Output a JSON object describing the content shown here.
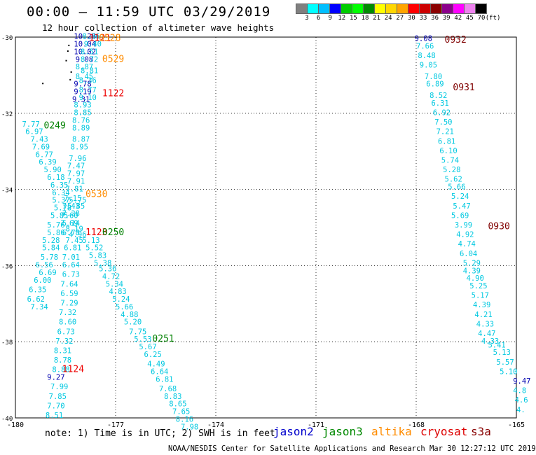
{
  "title": "00:00 – 11:59 UTC 03/29/2019",
  "subtitle": "12 hour collection of altimeter wave heights",
  "color_scale": {
    "labels": [
      "3",
      "6",
      "9",
      "12",
      "15",
      "18",
      "21",
      "24",
      "27",
      "30",
      "33",
      "36",
      "39",
      "42",
      "45",
      "70",
      "(ft)"
    ],
    "colors": [
      "#808080",
      "#00ffff",
      "#00bfff",
      "#0000ff",
      "#00cd00",
      "#00ff00",
      "#008b00",
      "#ffff00",
      "#ffd700",
      "#ffa500",
      "#ff0000",
      "#cd0000",
      "#8b0000",
      "#8b008b",
      "#ff00ff",
      "#ee82ee",
      "#000000"
    ]
  },
  "axes": {
    "x_ticks": [
      "-180",
      "-177",
      "-174",
      "-171",
      "-168",
      "-165"
    ],
    "y_ticks": [
      "-30",
      "-32",
      "-34",
      "-36",
      "-38",
      "-40"
    ]
  },
  "note": "note: 1) Time is in UTC; 2) SWH is in feet",
  "legend": [
    {
      "label": "jason2",
      "color": "#0000cc"
    },
    {
      "label": "jason3",
      "color": "#008800"
    },
    {
      "label": "altika",
      "color": "#ff8c00"
    },
    {
      "label": "cryosat",
      "color": "#dd0000"
    },
    {
      "label": "s3a",
      "color": "#880000"
    }
  ],
  "credit": "NOAA/NESDIS Center for Satellite Applications and Research   Mar 30 12:27:12 UTC 2019",
  "colors": {
    "cyan": "#00c8e0",
    "blue": "#0000b0",
    "green": "#008000",
    "orange": "#ff8c00",
    "red": "#ee0000",
    "maroon": "#800000"
  },
  "chart_data": {
    "type": "scatter",
    "xlim": [
      -180,
      -165
    ],
    "ylim": [
      -40,
      -30
    ],
    "track_labels": [
      {
        "text": "1121",
        "x": -177.8,
        "y": -30.1,
        "color": "red"
      },
      {
        "text": "0528",
        "x": -177.5,
        "y": -30.1,
        "color": "orange"
      },
      {
        "text": "0529",
        "x": -177.4,
        "y": -30.65,
        "color": "orange"
      },
      {
        "text": "1122",
        "x": -177.4,
        "y": -31.55,
        "color": "red"
      },
      {
        "text": "0249",
        "x": -179.15,
        "y": -32.4,
        "color": "green"
      },
      {
        "text": "0530",
        "x": -177.9,
        "y": -34.2,
        "color": "orange"
      },
      {
        "text": "1123",
        "x": -177.9,
        "y": -35.2,
        "color": "red"
      },
      {
        "text": "0250",
        "x": -177.4,
        "y": -35.2,
        "color": "green"
      },
      {
        "text": "0251",
        "x": -175.9,
        "y": -38.0,
        "color": "green"
      },
      {
        "text": "1124",
        "x": -178.6,
        "y": -38.8,
        "color": "red"
      },
      {
        "text": "0932",
        "x": -167.15,
        "y": -30.15,
        "color": "maroon"
      },
      {
        "text": "0931",
        "x": -166.9,
        "y": -31.4,
        "color": "maroon"
      },
      {
        "text": "0930",
        "x": -165.85,
        "y": -35.05,
        "color": "maroon"
      }
    ],
    "tracks": [
      {
        "name": "jason2-a",
        "color": "blue",
        "points": [
          [
            "10.28",
            -178.25,
            -30.05
          ],
          [
            "10.04",
            -178.25,
            -30.25
          ],
          [
            "10.02",
            -178.25,
            -30.45
          ],
          [
            "9.08",
            -178.2,
            -30.65
          ],
          [
            "9.78",
            -178.25,
            -31.3
          ],
          [
            "9.19",
            -178.25,
            -31.5
          ],
          [
            "9.31",
            -178.3,
            -31.7
          ]
        ]
      },
      {
        "name": "jason2-b",
        "color": "blue",
        "points": [
          [
            "9.27",
            -179.05,
            -39.0
          ]
        ]
      },
      {
        "name": "jason2-c",
        "color": "blue",
        "points": [
          [
            "9.08",
            -168.05,
            -30.1
          ],
          [
            "9.47",
            -165.1,
            -39.1
          ]
        ]
      },
      {
        "name": "altika-a",
        "color": "cyan",
        "points": [
          [
            "8.86",
            -178.0,
            -30.05
          ],
          [
            "9.40",
            -177.95,
            -30.25
          ],
          [
            "8.51",
            -178.05,
            -30.45
          ],
          [
            "8.72",
            -178.05,
            -30.65
          ],
          [
            "8.87",
            -178.2,
            -30.85
          ],
          [
            "8.81",
            -178.05,
            -30.95
          ],
          [
            "8.45",
            -178.2,
            -31.1
          ],
          [
            "8.36",
            -178.1,
            -31.2
          ],
          [
            "8.77",
            -178.1,
            -31.45
          ],
          [
            "9.10",
            -178.1,
            -31.65
          ],
          [
            "8.93",
            -178.25,
            -31.85
          ],
          [
            "8.85",
            -178.25,
            -32.05
          ],
          [
            "8.76",
            -178.3,
            -32.25
          ],
          [
            "8.89",
            -178.3,
            -32.45
          ],
          [
            "8.87",
            -178.3,
            -32.75
          ],
          [
            "8.95",
            -178.35,
            -32.95
          ],
          [
            "7.96",
            -178.4,
            -33.25
          ],
          [
            "7.47",
            -178.45,
            -33.45
          ],
          [
            "7.97",
            -178.45,
            -33.65
          ],
          [
            "7.91",
            -178.45,
            -33.85
          ],
          [
            "7.81",
            -178.5,
            -34.05
          ],
          [
            "7.15",
            -178.55,
            -34.3
          ],
          [
            "7.43",
            -178.6,
            -34.5
          ],
          [
            "7.28",
            -178.6,
            -34.7
          ],
          [
            "7.69",
            -178.65,
            -34.95
          ],
          [
            "8.19",
            -178.5,
            -35.1
          ],
          [
            "4.96",
            -178.4,
            -35.25
          ]
        ]
      },
      {
        "name": "jason3-a",
        "color": "cyan",
        "points": [
          [
            "7.77",
            -179.8,
            -32.35
          ],
          [
            "6.97",
            -179.7,
            -32.55
          ],
          [
            "7.43",
            -179.55,
            -32.75
          ],
          [
            "7.69",
            -179.5,
            -32.95
          ],
          [
            "6.77",
            -179.4,
            -33.15
          ],
          [
            "6.39",
            -179.3,
            -33.35
          ],
          [
            "5.90",
            -179.15,
            -33.55
          ],
          [
            "6.18",
            -179.05,
            -33.75
          ],
          [
            "6.35",
            -178.95,
            -33.95
          ],
          [
            "6.34",
            -178.9,
            -34.15
          ],
          [
            "5.37",
            -178.9,
            -34.35
          ],
          [
            "5.78",
            -178.85,
            -34.55
          ],
          [
            "5.85",
            -178.95,
            -34.75
          ],
          [
            "5.76",
            -179.05,
            -35.0
          ],
          [
            "5.86",
            -179.05,
            -35.2
          ],
          [
            "5.28",
            -179.2,
            -35.4
          ],
          [
            "5.84",
            -179.2,
            -35.6
          ],
          [
            "5.78",
            -179.25,
            -35.85
          ],
          [
            "6.56",
            -179.4,
            -36.05
          ],
          [
            "6.69",
            -179.3,
            -36.25
          ],
          [
            "6.00",
            -179.45,
            -36.45
          ],
          [
            "6.35",
            -179.6,
            -36.7
          ],
          [
            "6.62",
            -179.65,
            -36.95
          ],
          [
            "7.34",
            -179.55,
            -37.15
          ]
        ]
      },
      {
        "name": "cryosat-a",
        "color": "cyan",
        "points": [
          [
            "5.75",
            -178.4,
            -34.35
          ],
          [
            "5.85",
            -178.45,
            -34.5
          ],
          [
            "7.60",
            -178.65,
            -34.75
          ],
          [
            "5.14",
            -178.6,
            -34.95
          ],
          [
            "6.78",
            -178.6,
            -35.2
          ],
          [
            "7.45",
            -178.5,
            -35.4
          ],
          [
            "6.81",
            -178.55,
            -35.6
          ],
          [
            "7.01",
            -178.6,
            -35.85
          ],
          [
            "6.64",
            -178.6,
            -36.05
          ],
          [
            "6.73",
            -178.6,
            -36.3
          ],
          [
            "7.64",
            -178.65,
            -36.55
          ],
          [
            "6.59",
            -178.65,
            -36.8
          ],
          [
            "7.29",
            -178.65,
            -37.05
          ],
          [
            "7.32",
            -178.7,
            -37.3
          ],
          [
            "8.60",
            -178.7,
            -37.55
          ],
          [
            "6.73",
            -178.75,
            -37.8
          ],
          [
            "7.32",
            -178.8,
            -38.05
          ],
          [
            "8.31",
            -178.85,
            -38.3
          ],
          [
            "8.78",
            -178.85,
            -38.55
          ],
          [
            "8.88",
            -178.9,
            -38.8
          ],
          [
            "7.99",
            -178.95,
            -39.25
          ],
          [
            "7.85",
            -179.0,
            -39.5
          ],
          [
            "7.70",
            -179.05,
            -39.75
          ],
          [
            "8.51",
            -179.1,
            -40.0
          ]
        ]
      },
      {
        "name": "jason3-b",
        "color": "cyan",
        "points": [
          [
            "5.13",
            -178.0,
            -35.4
          ],
          [
            "5.52",
            -177.9,
            -35.6
          ],
          [
            "5.83",
            -177.8,
            -35.8
          ],
          [
            "5.38",
            -177.65,
            -36.0
          ],
          [
            "5.36",
            -177.5,
            -36.15
          ],
          [
            "4.72",
            -177.4,
            -36.35
          ],
          [
            "5.34",
            -177.3,
            -36.55
          ],
          [
            "4.83",
            -177.2,
            -36.75
          ],
          [
            "5.24",
            -177.1,
            -36.95
          ],
          [
            "5.66",
            -177.0,
            -37.15
          ],
          [
            "4.88",
            -176.85,
            -37.35
          ],
          [
            "5.20",
            -176.75,
            -37.55
          ],
          [
            "7.75",
            -176.6,
            -37.8
          ],
          [
            "5.53",
            -176.45,
            -38.0
          ],
          [
            "5.67",
            -176.3,
            -38.2
          ],
          [
            "6.25",
            -176.15,
            -38.4
          ],
          [
            "4.49",
            -176.05,
            -38.65
          ],
          [
            "6.64",
            -175.95,
            -38.85
          ],
          [
            "6.81",
            -175.8,
            -39.05
          ],
          [
            "7.68",
            -175.7,
            -39.3
          ],
          [
            "8.83",
            -175.55,
            -39.5
          ],
          [
            "8.65",
            -175.4,
            -39.7
          ],
          [
            "7.65",
            -175.3,
            -39.9
          ],
          [
            "8.16",
            -175.2,
            -40.1
          ],
          [
            "7.98",
            -175.05,
            -40.3
          ]
        ]
      },
      {
        "name": "s3a-a",
        "color": "cyan",
        "points": [
          [
            "7.66",
            -168.0,
            -30.3
          ],
          [
            "8.48",
            -167.95,
            -30.55
          ],
          [
            "9.05",
            -167.9,
            -30.8
          ],
          [
            "7.80",
            -167.75,
            -31.1
          ],
          [
            "6.89",
            -167.7,
            -31.3
          ],
          [
            "8.52",
            -167.6,
            -31.6
          ],
          [
            "6.31",
            -167.55,
            -31.8
          ],
          [
            "6.92",
            -167.5,
            -32.05
          ],
          [
            "7.50",
            -167.45,
            -32.3
          ],
          [
            "7.21",
            -167.4,
            -32.55
          ],
          [
            "6.81",
            -167.35,
            -32.8
          ],
          [
            "6.10",
            -167.3,
            -33.05
          ],
          [
            "5.74",
            -167.25,
            -33.3
          ],
          [
            "5.28",
            -167.2,
            -33.55
          ],
          [
            "5.62",
            -167.15,
            -33.8
          ],
          [
            "5.66",
            -167.05,
            -34.0
          ],
          [
            "5.24",
            -166.95,
            -34.25
          ],
          [
            "5.47",
            -166.9,
            -34.5
          ],
          [
            "5.69",
            -166.95,
            -34.75
          ],
          [
            "3.99",
            -166.85,
            -35.0
          ],
          [
            "4.92",
            -166.8,
            -35.25
          ],
          [
            "4.74",
            -166.75,
            -35.5
          ],
          [
            "6.04",
            -166.7,
            -35.75
          ],
          [
            "5.29",
            -166.6,
            -36.0
          ],
          [
            "4.39",
            -166.6,
            -36.2
          ],
          [
            "4.90",
            -166.5,
            -36.4
          ],
          [
            "5.25",
            -166.4,
            -36.6
          ],
          [
            "5.17",
            -166.35,
            -36.85
          ],
          [
            "4.39",
            -166.3,
            -37.1
          ],
          [
            "4.21",
            -166.25,
            -37.35
          ],
          [
            "4.33",
            -166.2,
            -37.6
          ],
          [
            "4.47",
            -166.15,
            -37.85
          ],
          [
            "4.33",
            -166.05,
            -38.05
          ],
          [
            "5.41",
            -165.85,
            -38.15
          ],
          [
            "5.13",
            -165.7,
            -38.35
          ],
          [
            "5.57",
            -165.6,
            -38.6
          ],
          [
            "5.10",
            -165.5,
            -38.85
          ],
          [
            "4.8",
            -165.1,
            -39.35
          ],
          [
            "4.6",
            -165.05,
            -39.6
          ],
          [
            "4.",
            -165.0,
            -39.85
          ]
        ]
      }
    ]
  }
}
